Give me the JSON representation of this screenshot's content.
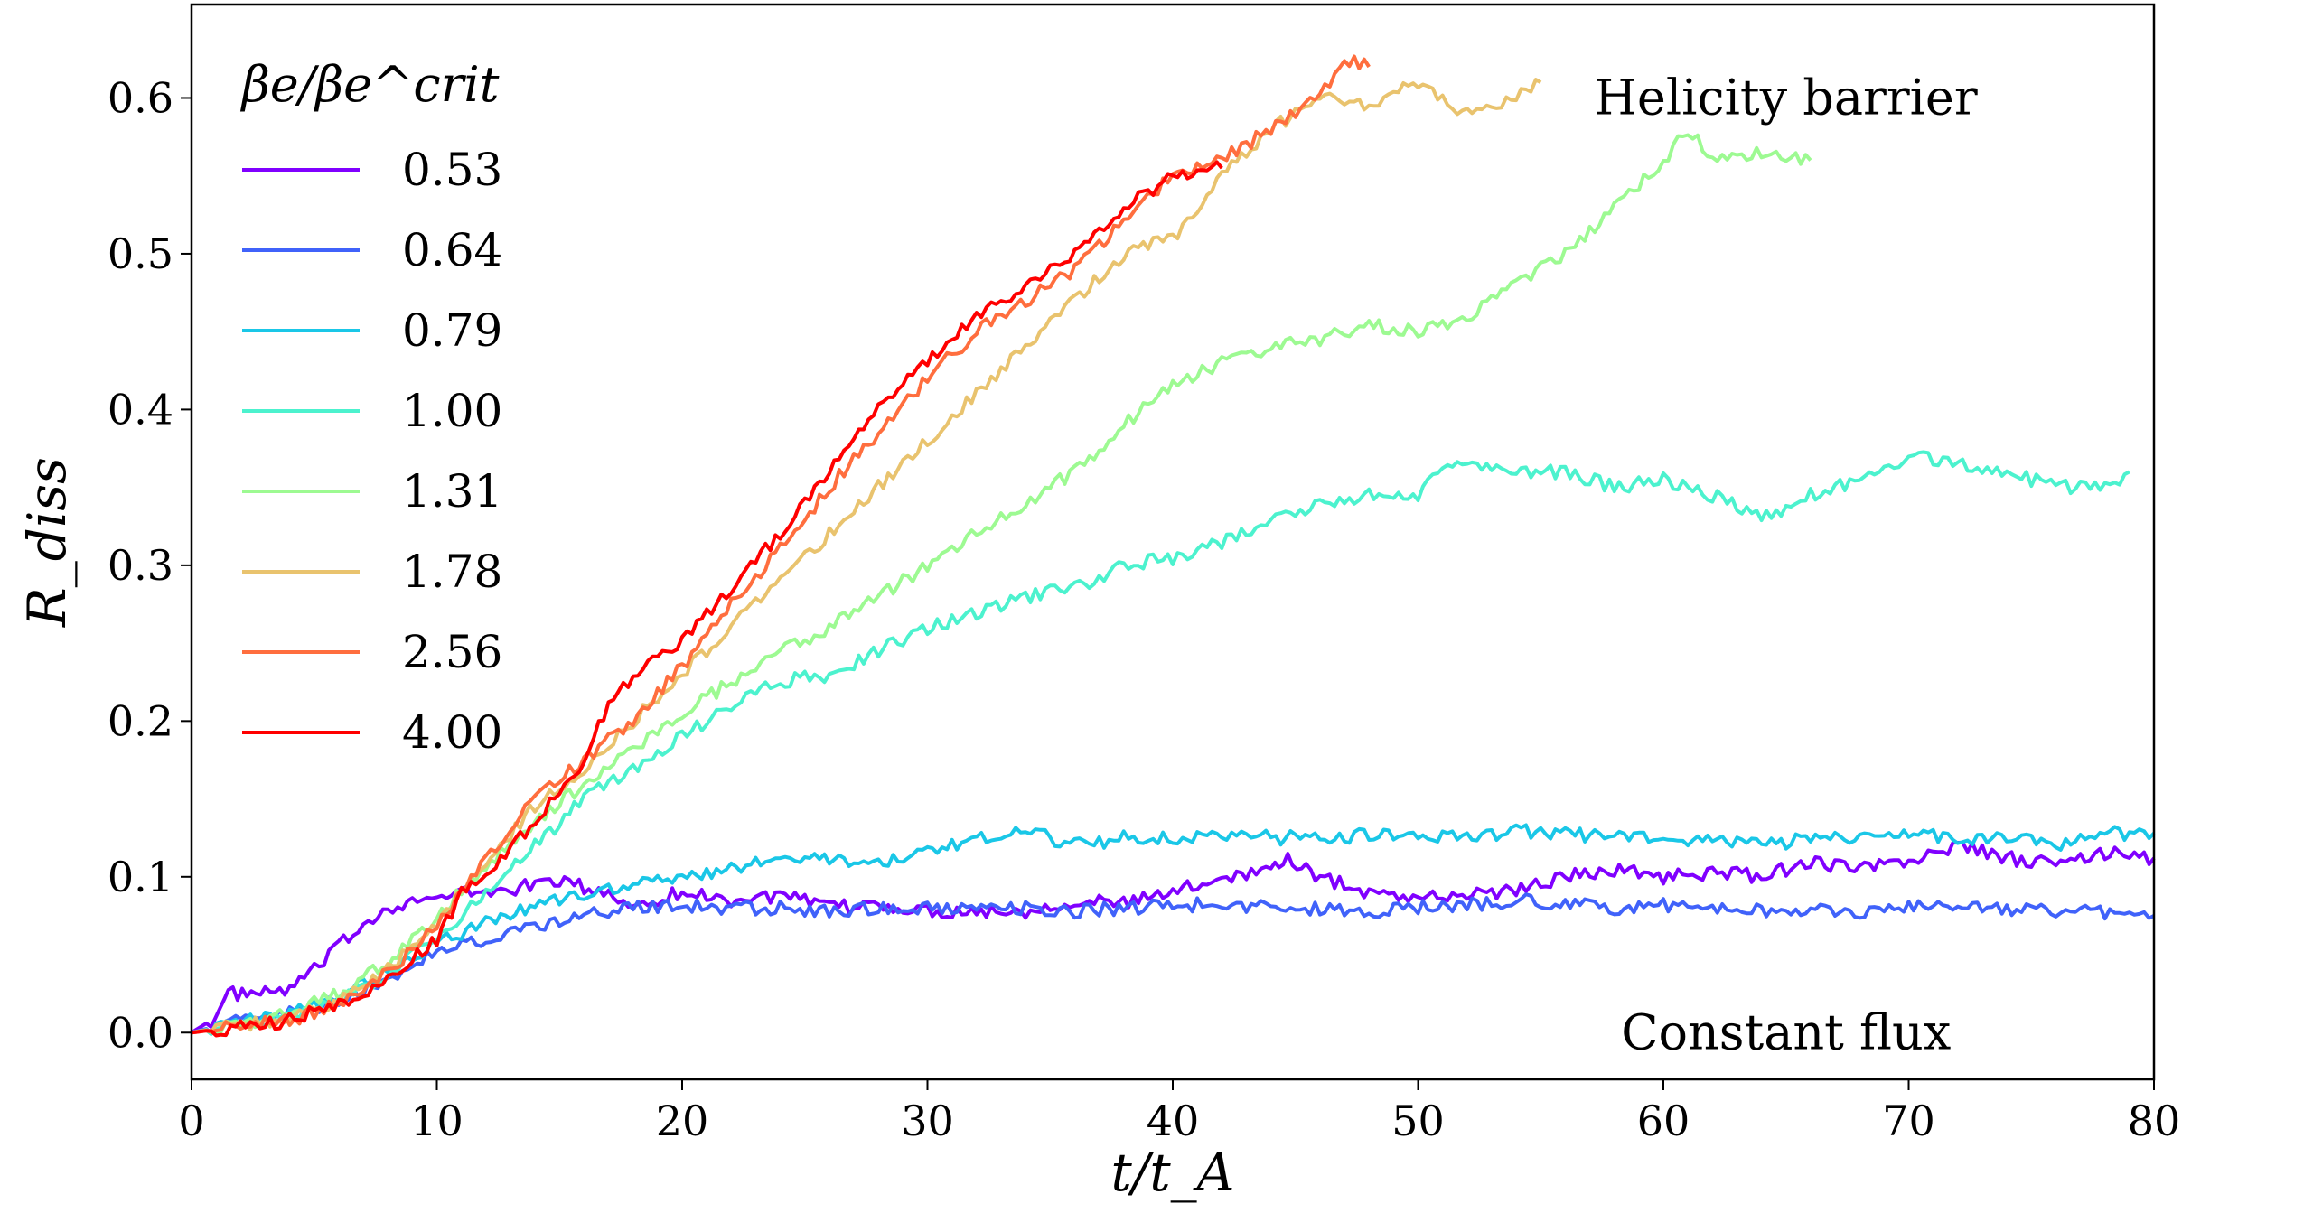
{
  "chart_data": {
    "type": "line",
    "xlabel": "t/t_A",
    "ylabel": "R_diss",
    "xlim": [
      0,
      80
    ],
    "ylim": [
      -0.03,
      0.66
    ],
    "x_ticks": [
      0,
      10,
      20,
      30,
      40,
      50,
      60,
      70,
      80
    ],
    "x_tick_labels": [
      "0",
      "10",
      "20",
      "30",
      "40",
      "50",
      "60",
      "70",
      "80"
    ],
    "y_ticks": [
      0.0,
      0.1,
      0.2,
      0.3,
      0.4,
      0.5,
      0.6
    ],
    "y_tick_labels": [
      "0.0",
      "0.1",
      "0.2",
      "0.3",
      "0.4",
      "0.5",
      "0.6"
    ],
    "grid": false,
    "legend": {
      "title": "βe/βe^crit",
      "placement": "top-left"
    },
    "annotations": [
      {
        "text": "Helicity barrier",
        "x": 65,
        "y": 0.6
      },
      {
        "text": "Constant flux",
        "x": 65,
        "y": 0.0
      }
    ],
    "series": [
      {
        "name": "0.53",
        "color": "#8000ff",
        "x": [
          0,
          1,
          1.5,
          3,
          4,
          5,
          6,
          7,
          8,
          9,
          10,
          11,
          12,
          13,
          14,
          15,
          16,
          17,
          18,
          20,
          22,
          24,
          26,
          28,
          30,
          32,
          34,
          36,
          38,
          40,
          42,
          44,
          44.5,
          46,
          48,
          50,
          52,
          54,
          56,
          58,
          60,
          62,
          64,
          66,
          68,
          70,
          72,
          74,
          76,
          78,
          80
        ],
        "y": [
          0,
          0.01,
          0.025,
          0.025,
          0.028,
          0.04,
          0.055,
          0.07,
          0.08,
          0.085,
          0.085,
          0.09,
          0.09,
          0.092,
          0.095,
          0.098,
          0.093,
          0.088,
          0.082,
          0.09,
          0.085,
          0.088,
          0.08,
          0.082,
          0.078,
          0.078,
          0.078,
          0.085,
          0.083,
          0.09,
          0.1,
          0.105,
          0.112,
          0.1,
          0.09,
          0.087,
          0.088,
          0.092,
          0.1,
          0.105,
          0.1,
          0.103,
          0.1,
          0.11,
          0.105,
          0.11,
          0.12,
          0.112,
          0.108,
          0.115,
          0.112
        ]
      },
      {
        "name": "0.64",
        "color": "#4062fa",
        "x": [
          0,
          2,
          4,
          6,
          8,
          10,
          12,
          14,
          16,
          18,
          20,
          22,
          24,
          26,
          28,
          30,
          32,
          34,
          36,
          38,
          40,
          42,
          44,
          46,
          48,
          50,
          52,
          54,
          56,
          58,
          60,
          62,
          64,
          66,
          68,
          70,
          72,
          74,
          76,
          78,
          80
        ],
        "y": [
          0,
          0.008,
          0.012,
          0.02,
          0.035,
          0.052,
          0.06,
          0.068,
          0.075,
          0.08,
          0.082,
          0.08,
          0.08,
          0.078,
          0.08,
          0.08,
          0.082,
          0.08,
          0.078,
          0.08,
          0.082,
          0.082,
          0.08,
          0.08,
          0.078,
          0.08,
          0.082,
          0.085,
          0.082,
          0.08,
          0.082,
          0.08,
          0.078,
          0.08,
          0.078,
          0.08,
          0.08,
          0.078,
          0.078,
          0.077,
          0.075
        ]
      },
      {
        "name": "0.79",
        "color": "#1ac7e7",
        "x": [
          0,
          2,
          4,
          6,
          8,
          10,
          12,
          14,
          16,
          18,
          20,
          22,
          24,
          26,
          28,
          30,
          32,
          34,
          36,
          38,
          40,
          42,
          44,
          46,
          48,
          50,
          52,
          54,
          56,
          58,
          60,
          62,
          64,
          66,
          68,
          70,
          72,
          74,
          76,
          78,
          80
        ],
        "y": [
          0,
          0.006,
          0.012,
          0.022,
          0.04,
          0.058,
          0.07,
          0.082,
          0.088,
          0.095,
          0.1,
          0.105,
          0.115,
          0.11,
          0.11,
          0.115,
          0.125,
          0.13,
          0.12,
          0.125,
          0.125,
          0.128,
          0.125,
          0.125,
          0.127,
          0.128,
          0.125,
          0.13,
          0.128,
          0.125,
          0.125,
          0.124,
          0.12,
          0.125,
          0.125,
          0.128,
          0.125,
          0.125,
          0.12,
          0.128,
          0.128
        ]
      },
      {
        "name": "1.00",
        "color": "#4cf2ce",
        "x": [
          0,
          2,
          4,
          6,
          8,
          10,
          12,
          14,
          16,
          18,
          20,
          22,
          24,
          26,
          28,
          30,
          32,
          34,
          36,
          38,
          40,
          42,
          44,
          46,
          48,
          50,
          51,
          52,
          54,
          56,
          58,
          60,
          62,
          64,
          66,
          68,
          70,
          72,
          74,
          76,
          78,
          79
        ],
        "y": [
          0,
          0.005,
          0.01,
          0.02,
          0.038,
          0.06,
          0.09,
          0.12,
          0.15,
          0.17,
          0.19,
          0.21,
          0.225,
          0.23,
          0.245,
          0.26,
          0.27,
          0.28,
          0.285,
          0.3,
          0.305,
          0.315,
          0.33,
          0.34,
          0.345,
          0.345,
          0.36,
          0.365,
          0.36,
          0.36,
          0.35,
          0.355,
          0.345,
          0.33,
          0.345,
          0.355,
          0.37,
          0.365,
          0.36,
          0.35,
          0.35,
          0.36
        ]
      },
      {
        "name": "1.31",
        "color": "#9dfa92",
        "x": [
          0,
          2,
          4,
          6,
          8,
          10,
          12,
          14,
          16,
          18,
          20,
          22,
          24,
          26,
          28,
          30,
          32,
          34,
          36,
          38,
          40,
          42,
          44,
          46,
          48,
          50,
          52,
          54,
          56,
          58,
          60,
          61,
          62,
          64,
          66
        ],
        "y": [
          0,
          0.006,
          0.012,
          0.025,
          0.045,
          0.075,
          0.105,
          0.135,
          0.16,
          0.18,
          0.205,
          0.225,
          0.245,
          0.26,
          0.28,
          0.3,
          0.32,
          0.34,
          0.36,
          0.39,
          0.415,
          0.43,
          0.44,
          0.445,
          0.455,
          0.45,
          0.46,
          0.48,
          0.5,
          0.53,
          0.56,
          0.58,
          0.56,
          0.565,
          0.56
        ]
      },
      {
        "name": "1.78",
        "color": "#e9c36e",
        "x": [
          0,
          2,
          4,
          6,
          8,
          10,
          12,
          14,
          16,
          18,
          20,
          22,
          24,
          26,
          28,
          30,
          32,
          34,
          36,
          38,
          40,
          42,
          44,
          46,
          48,
          50,
          52,
          54,
          55
        ],
        "y": [
          0,
          0.005,
          0.01,
          0.02,
          0.04,
          0.07,
          0.11,
          0.145,
          0.17,
          0.2,
          0.23,
          0.26,
          0.29,
          0.32,
          0.35,
          0.38,
          0.41,
          0.44,
          0.47,
          0.5,
          0.51,
          0.55,
          0.58,
          0.6,
          0.595,
          0.61,
          0.59,
          0.6,
          0.61
        ]
      },
      {
        "name": "2.56",
        "color": "#ff6e3e",
        "x": [
          0,
          2,
          4,
          6,
          8,
          10,
          12,
          14,
          16,
          18,
          20,
          22,
          24,
          26,
          28,
          30,
          32,
          34,
          36,
          38,
          40,
          42,
          44,
          46,
          47,
          48
        ],
        "y": [
          0,
          0.004,
          0.008,
          0.018,
          0.038,
          0.07,
          0.11,
          0.15,
          0.175,
          0.2,
          0.235,
          0.275,
          0.31,
          0.35,
          0.385,
          0.42,
          0.45,
          0.47,
          0.49,
          0.52,
          0.55,
          0.56,
          0.58,
          0.6,
          0.625,
          0.62
        ]
      },
      {
        "name": "4.00",
        "color": "#ff0000",
        "x": [
          0,
          2,
          4,
          6,
          8,
          10,
          11,
          12,
          14,
          16,
          17,
          18,
          20,
          22,
          24,
          26,
          28,
          30,
          32,
          34,
          36,
          38,
          40,
          42
        ],
        "y": [
          0,
          0.004,
          0.008,
          0.018,
          0.035,
          0.06,
          0.09,
          0.1,
          0.135,
          0.175,
          0.21,
          0.23,
          0.25,
          0.285,
          0.32,
          0.36,
          0.4,
          0.43,
          0.46,
          0.48,
          0.5,
          0.53,
          0.55,
          0.555
        ]
      }
    ]
  }
}
